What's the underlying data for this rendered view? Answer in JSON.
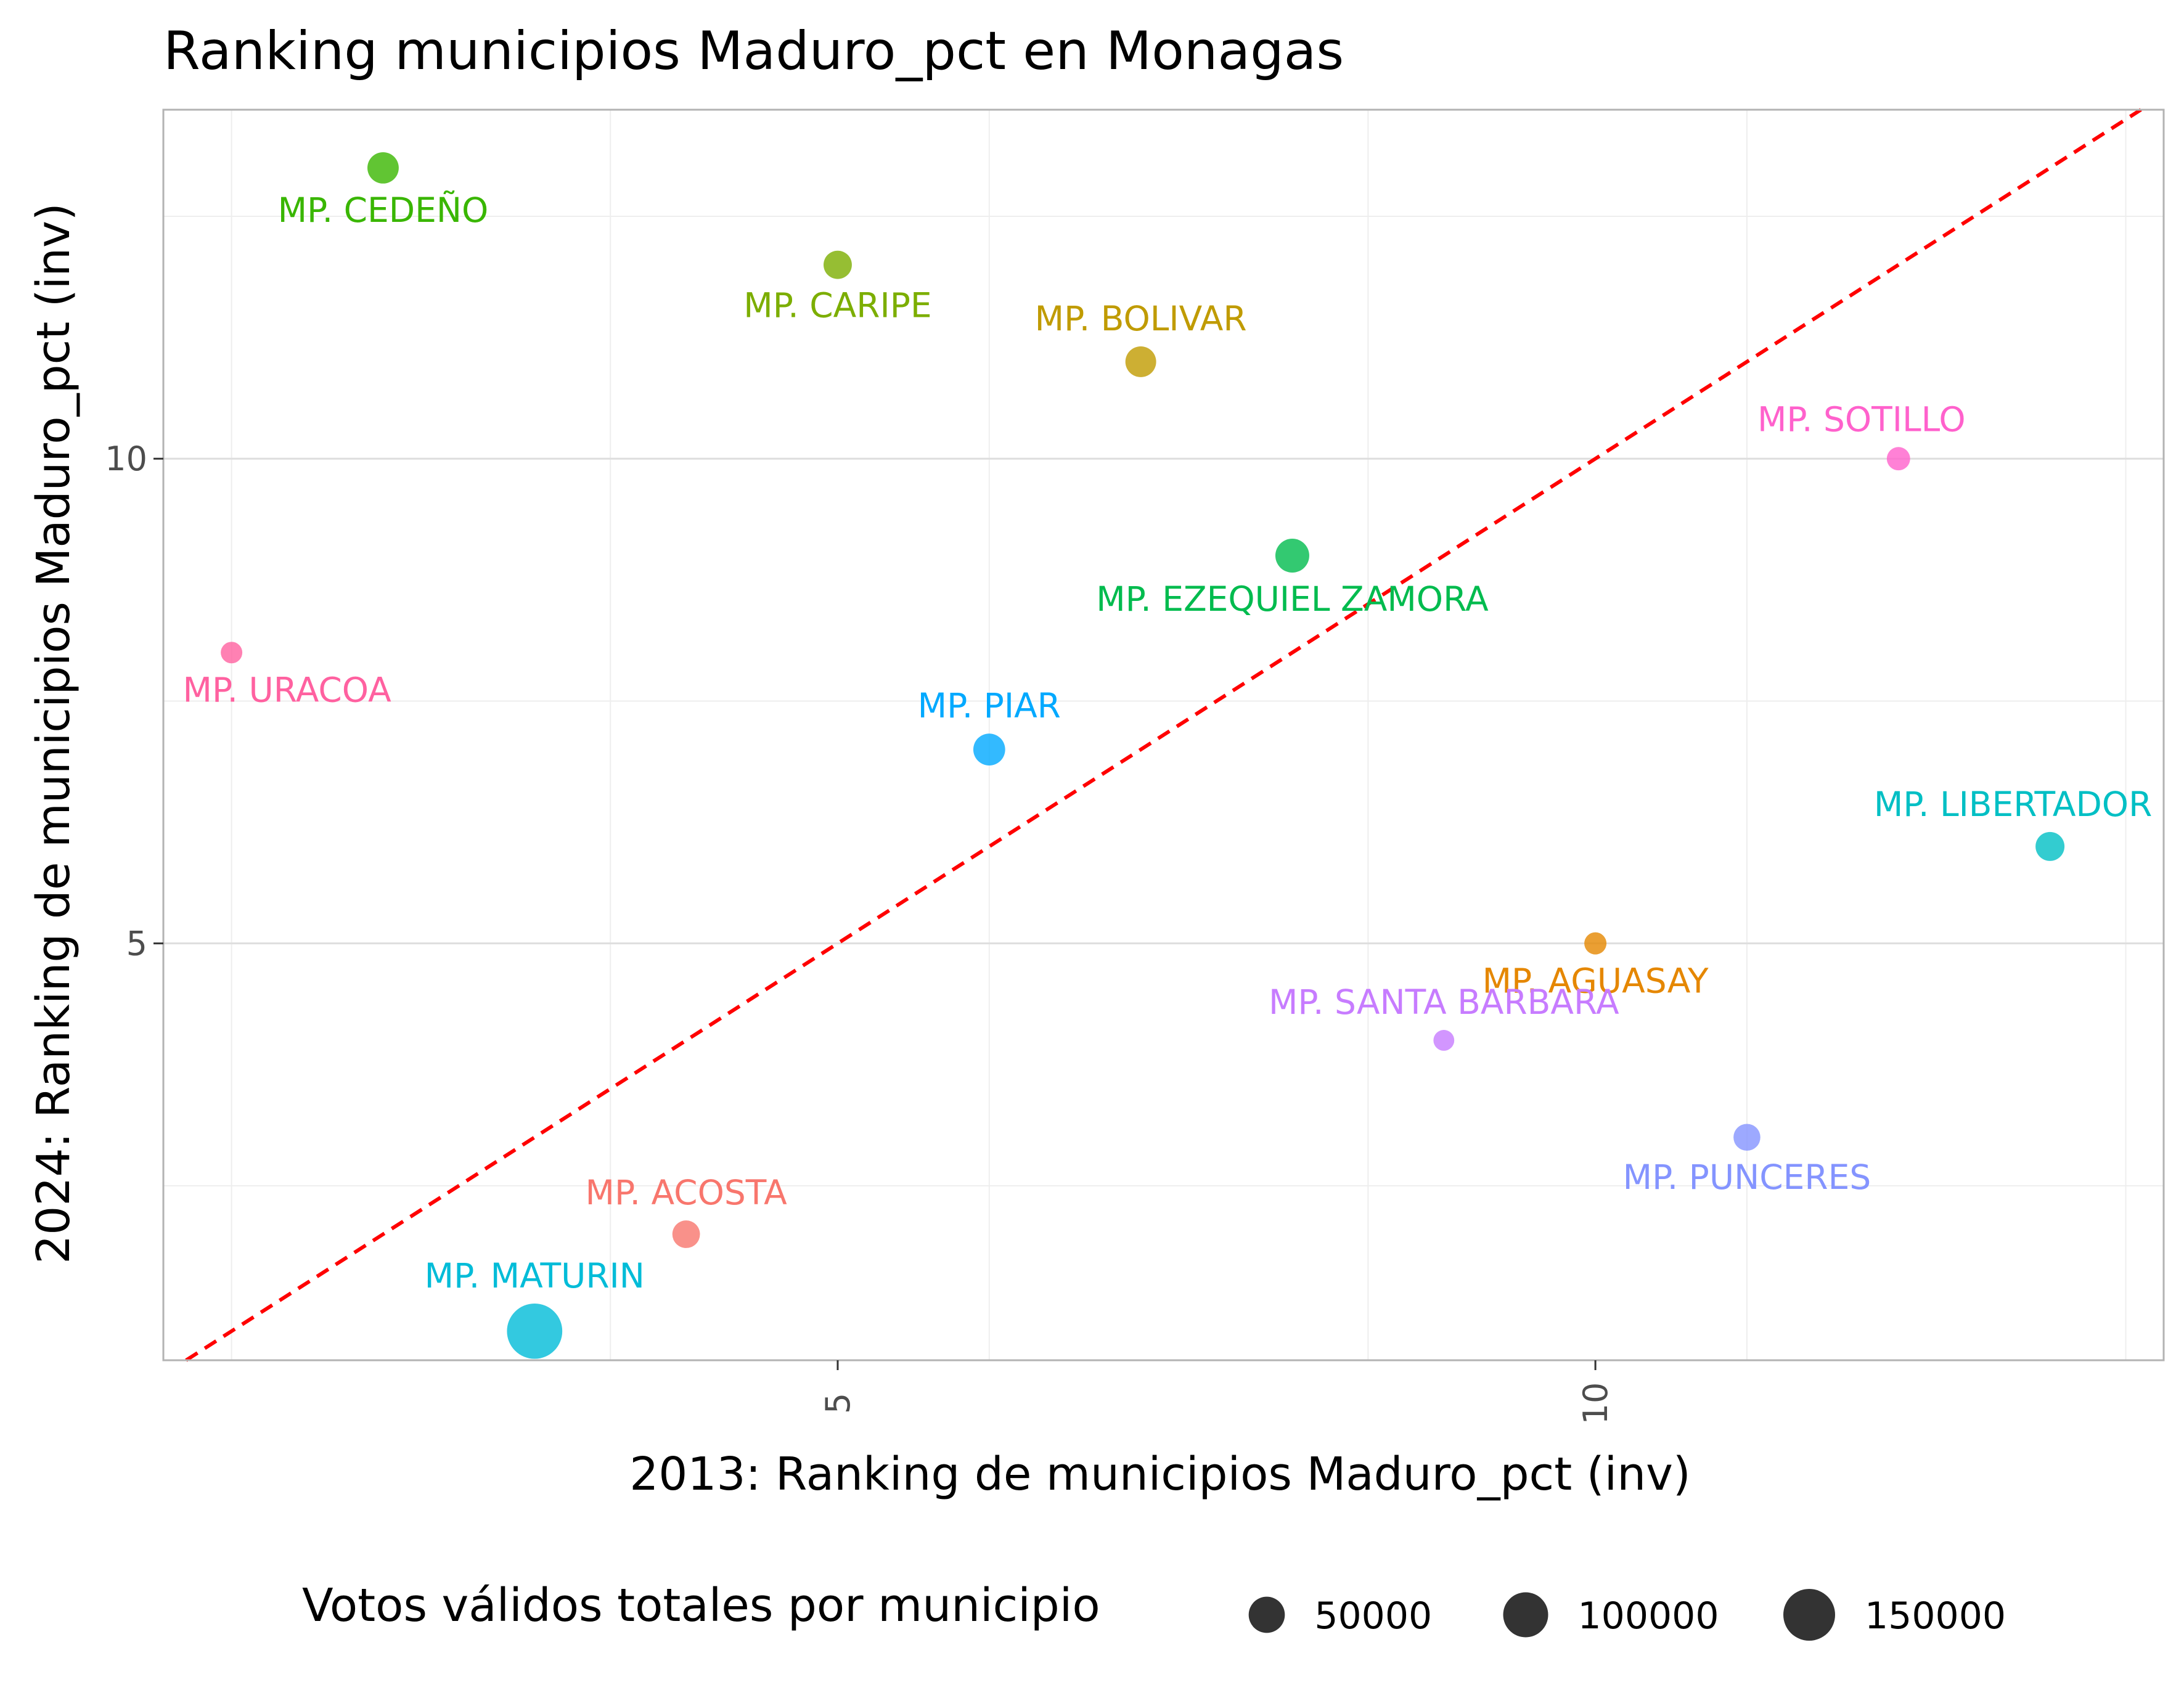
{
  "chart_data": {
    "type": "scatter",
    "title": "Ranking municipios Maduro_pct en Monagas",
    "xlabel": "2013: Ranking de municipios Maduro_pct (inv)",
    "ylabel": "2024: Ranking de municipios Maduro_pct (inv)",
    "xlim": [
      0.55,
      13.75
    ],
    "ylim": [
      0.7,
      13.6
    ],
    "x_ticks": [
      5,
      10
    ],
    "y_ticks": [
      5,
      10
    ],
    "grid": true,
    "reference_line": {
      "type": "identity",
      "style": "dashed",
      "color": "#ff0000"
    },
    "points": [
      {
        "label": "MP. CEDEÑO",
        "x": 2,
        "y": 13,
        "votes": 30000,
        "color": "#39b600"
      },
      {
        "label": "MP. CARIPE",
        "x": 5,
        "y": 12,
        "votes": 20000,
        "color": "#7cae00"
      },
      {
        "label": "MP. BOLIVAR",
        "x": 7,
        "y": 11,
        "votes": 28000,
        "color": "#c09b00"
      },
      {
        "label": "MP. SOTILLO",
        "x": 12,
        "y": 10,
        "votes": 8000,
        "color": "#ff61cc"
      },
      {
        "label": "MP. EZEQUIEL ZAMORA",
        "x": 8,
        "y": 9,
        "votes": 40000,
        "color": "#00bb4e"
      },
      {
        "label": "MP. URACOA",
        "x": 1,
        "y": 8,
        "votes": 5000,
        "color": "#ff61a0"
      },
      {
        "label": "MP. PIAR",
        "x": 6,
        "y": 7,
        "votes": 32000,
        "color": "#00a9ff"
      },
      {
        "label": "MP. LIBERTADOR",
        "x": 13,
        "y": 6,
        "votes": 22000,
        "color": "#00bfc4"
      },
      {
        "label": "MP. AGUASAY",
        "x": 10,
        "y": 5,
        "votes": 6000,
        "color": "#e58700"
      },
      {
        "label": "MP. SANTA BARBARA",
        "x": 9,
        "y": 4,
        "votes": 4000,
        "color": "#c77cff"
      },
      {
        "label": "MP. PUNCERES",
        "x": 11,
        "y": 3,
        "votes": 16000,
        "color": "#8494ff"
      },
      {
        "label": "MP. ACOSTA",
        "x": 4,
        "y": 2,
        "votes": 18000,
        "color": "#f8766d"
      },
      {
        "label": "MP. MATURIN",
        "x": 3,
        "y": 1,
        "votes": 180000,
        "color": "#00bcd8"
      }
    ],
    "legend": {
      "title": "Votos válidos totales por municipio",
      "position": "bottom",
      "entries": [
        {
          "label": "50000",
          "value": 50000
        },
        {
          "label": "100000",
          "value": 100000
        },
        {
          "label": "150000",
          "value": 150000
        }
      ]
    }
  },
  "colors": {
    "panel_border": "#b3b3b3",
    "grid_major": "#dedede",
    "grid_minor": "#eeeeee",
    "legend_point": "#333333"
  }
}
